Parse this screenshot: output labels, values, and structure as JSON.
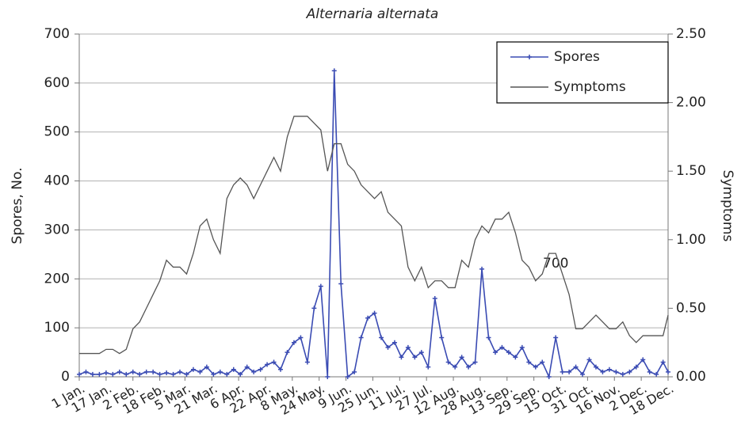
{
  "chart_data": {
    "type": "line",
    "title": "Alternaria alternata",
    "y_label": "Spores, No.",
    "y2_label": "Symptoms",
    "annotation": "700",
    "x": [
      1,
      5,
      9,
      13,
      17,
      21,
      25,
      29,
      33,
      37,
      41,
      45,
      49,
      53,
      57,
      61,
      65,
      69,
      73,
      77,
      81,
      85,
      89,
      93,
      97,
      101,
      105,
      109,
      113,
      117,
      121,
      125,
      129,
      133,
      137,
      141,
      145,
      149,
      153,
      157,
      161,
      165,
      169,
      173,
      177,
      181,
      185,
      189,
      193,
      197,
      201,
      205,
      209,
      213,
      217,
      221,
      225,
      229,
      233,
      237,
      241,
      245,
      249,
      253,
      257,
      261,
      265,
      269,
      273,
      277,
      281,
      285,
      289,
      293,
      297,
      301,
      305,
      309,
      313,
      317,
      321,
      325,
      329,
      333,
      337,
      341,
      345,
      349,
      352
    ],
    "xlim": [
      1,
      352
    ],
    "xticks": [
      {
        "value": 1,
        "label": "1 Jan."
      },
      {
        "value": 17,
        "label": "17 Jan."
      },
      {
        "value": 33,
        "label": "2 Feb."
      },
      {
        "value": 49,
        "label": "18 Feb."
      },
      {
        "value": 64,
        "label": "5 Mar."
      },
      {
        "value": 80,
        "label": "21 Mar."
      },
      {
        "value": 96,
        "label": "6 Apr."
      },
      {
        "value": 112,
        "label": "22 Apr."
      },
      {
        "value": 128,
        "label": "8 May."
      },
      {
        "value": 144,
        "label": "24 May."
      },
      {
        "value": 160,
        "label": "9 Jun."
      },
      {
        "value": 176,
        "label": "25 Jun."
      },
      {
        "value": 192,
        "label": "11 Jul."
      },
      {
        "value": 208,
        "label": "27 Jul."
      },
      {
        "value": 224,
        "label": "12 Aug."
      },
      {
        "value": 240,
        "label": "28 Aug."
      },
      {
        "value": 256,
        "label": "13 Sep."
      },
      {
        "value": 272,
        "label": "29 Sep."
      },
      {
        "value": 288,
        "label": "15 Oct."
      },
      {
        "value": 304,
        "label": "31 Oct."
      },
      {
        "value": 320,
        "label": "16 Nov."
      },
      {
        "value": 336,
        "label": "2 Dec."
      },
      {
        "value": 352,
        "label": "18 Dec."
      }
    ],
    "ylim": [
      0,
      700
    ],
    "yticks": [
      0,
      100,
      200,
      300,
      400,
      500,
      600,
      700
    ],
    "y2lim": [
      0,
      2.5
    ],
    "y2ticks": [
      {
        "value": 0,
        "label": "0.00"
      },
      {
        "value": 0.5,
        "label": "0.50"
      },
      {
        "value": 1,
        "label": "1.00"
      },
      {
        "value": 1.5,
        "label": "1.50"
      },
      {
        "value": 2,
        "label": "2.00"
      },
      {
        "value": 2.5,
        "label": "2.50"
      }
    ],
    "grid": true,
    "legend": "top-right",
    "series": [
      {
        "name": "Spores",
        "color": "#3a4bb3",
        "values": [
          5,
          10,
          5,
          5,
          8,
          5,
          10,
          5,
          10,
          5,
          10,
          10,
          5,
          8,
          5,
          10,
          5,
          15,
          10,
          20,
          5,
          10,
          5,
          15,
          5,
          20,
          10,
          15,
          25,
          30,
          15,
          50,
          70,
          80,
          30,
          140,
          185,
          0,
          625,
          190,
          0,
          10,
          80,
          120,
          130,
          80,
          60,
          70,
          40,
          60,
          40,
          50,
          20,
          160,
          80,
          30,
          20,
          40,
          20,
          30,
          220,
          80,
          50,
          60,
          50,
          40,
          60,
          30,
          20,
          30,
          0,
          80,
          10,
          10,
          20,
          5,
          35,
          20,
          10,
          15,
          10,
          5,
          10,
          20,
          35,
          10,
          5,
          30,
          10
        ]
      },
      {
        "name": "Symptoms",
        "color": "#555555",
        "axis": "y2",
        "values": [
          0.17,
          0.17,
          0.17,
          0.17,
          0.2,
          0.2,
          0.17,
          0.2,
          0.35,
          0.4,
          0.5,
          0.6,
          0.7,
          0.85,
          0.8,
          0.8,
          0.75,
          0.9,
          1.1,
          1.15,
          1.0,
          0.9,
          1.3,
          1.4,
          1.45,
          1.4,
          1.3,
          1.4,
          1.5,
          1.6,
          1.5,
          1.75,
          1.9,
          1.9,
          1.9,
          1.85,
          1.8,
          1.5,
          1.7,
          1.7,
          1.55,
          1.5,
          1.4,
          1.35,
          1.3,
          1.35,
          1.2,
          1.15,
          1.1,
          0.8,
          0.7,
          0.8,
          0.65,
          0.7,
          0.7,
          0.65,
          0.65,
          0.85,
          0.8,
          1.0,
          1.1,
          1.05,
          1.15,
          1.15,
          1.2,
          1.05,
          0.85,
          0.8,
          0.7,
          0.75,
          0.9,
          0.9,
          0.75,
          0.6,
          0.35,
          0.35,
          0.4,
          0.45,
          0.4,
          0.35,
          0.35,
          0.4,
          0.3,
          0.25,
          0.3,
          0.3,
          0.3,
          0.3,
          0.45
        ]
      }
    ]
  }
}
